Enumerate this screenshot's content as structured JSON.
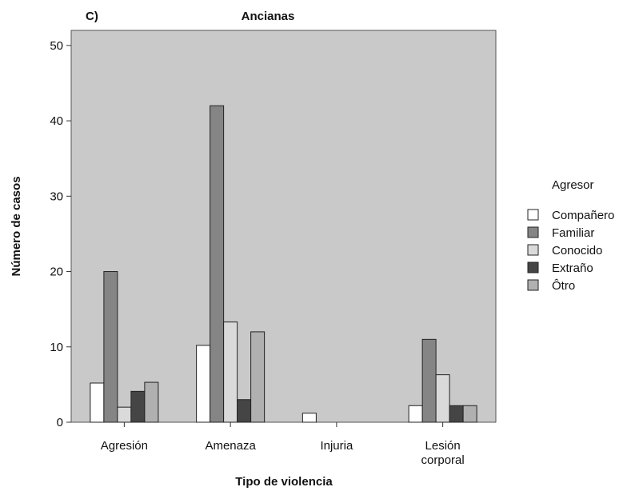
{
  "chart_data": {
    "type": "bar",
    "panel_label": "C)",
    "title": "Ancianas",
    "xlabel": "Tipo de violencia",
    "ylabel": "Número de casos",
    "ylim": [
      0,
      52
    ],
    "yticks": [
      0,
      10,
      20,
      30,
      40,
      50
    ],
    "grid": false,
    "legend_title": "Agresor",
    "legend_position": "right",
    "categories": [
      [
        "Agresión"
      ],
      [
        "Amenaza"
      ],
      [
        "Injuria"
      ],
      [
        "Lesión",
        "corporal"
      ]
    ],
    "series": [
      {
        "name": "Compañero",
        "color": "#ffffff",
        "values": [
          5.2,
          10.2,
          1.2,
          2.2
        ]
      },
      {
        "name": "Familiar",
        "color": "#858585",
        "values": [
          20,
          42,
          0,
          11
        ]
      },
      {
        "name": "Conocido",
        "color": "#dadada",
        "values": [
          2,
          13.3,
          0,
          6.3
        ]
      },
      {
        "name": "Extraño",
        "color": "#454545",
        "values": [
          4.1,
          3,
          0,
          2.2
        ]
      },
      {
        "name": "Ôtro",
        "color": "#b0b0b0",
        "values": [
          5.3,
          12,
          0,
          2.2
        ]
      }
    ]
  }
}
